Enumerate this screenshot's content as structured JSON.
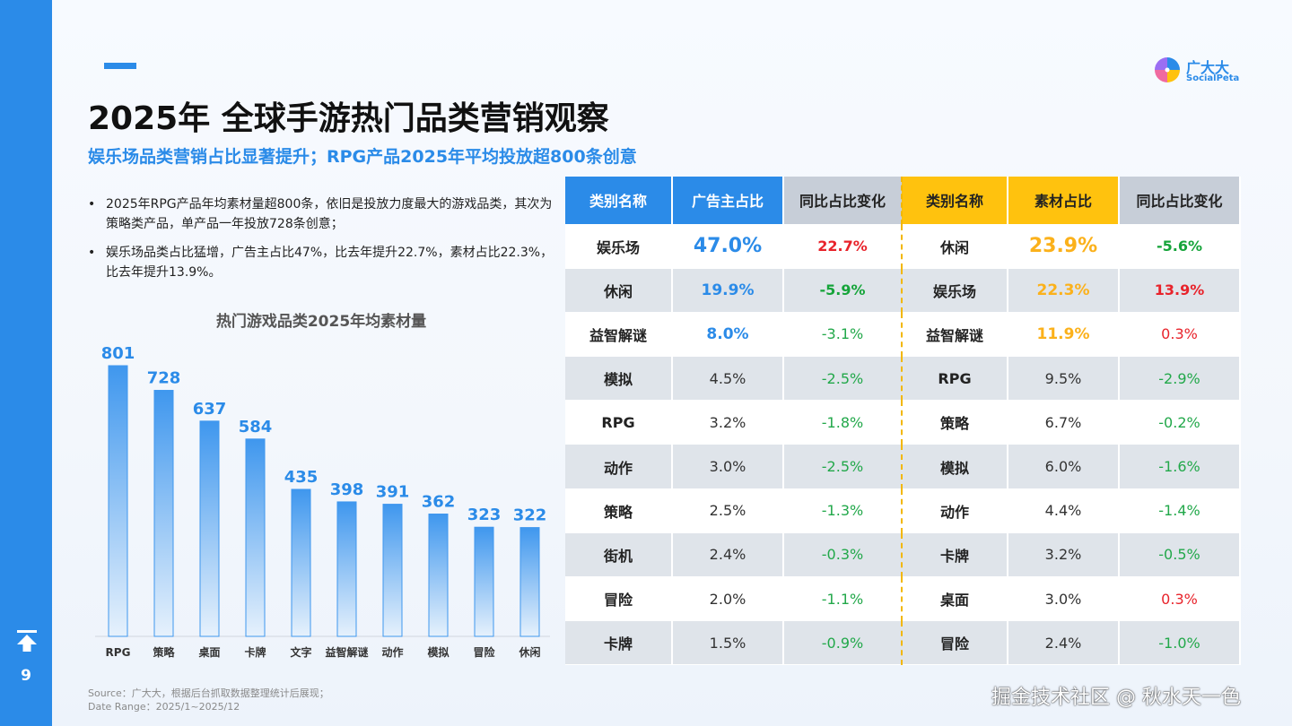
{
  "page": {
    "title": "2025年 全球手游热门品类营销观察",
    "subtitle": "娱乐场品类营销占比显著提升；RPG产品2025年平均投放超800条创意",
    "page_number": "9",
    "logo": {
      "cn": "广大大",
      "en": "SocialPeta"
    },
    "bullets": [
      "2025年RPG产品年均素材量超800条，依旧是投放力度最大的游戏品类，其次为策略类产品，单产品一年投放728条创意；",
      "娱乐场品类占比猛增，广告主占比47%，比去年提升22.7%，素材占比22.3%，比去年提升13.9%。"
    ],
    "bullet_marker": "•",
    "source_lines": [
      "Source：广大大，根据后台抓取数据整理统计后展现；",
      "Date Range：2025/1~2025/12"
    ],
    "watermark": "掘金技术社区 @ 秋水天一色",
    "colors": {
      "accent": "#2b8be8",
      "yellow": "#ffc20e",
      "red": "#e8232b",
      "green": "#16a43a"
    },
    "icons": {
      "home": "to-top-icon",
      "logo": "pie-logo-icon"
    }
  },
  "chart_data": {
    "type": "bar",
    "title": "热门游戏品类2025年均素材量",
    "categories": [
      "RPG",
      "策略",
      "桌面",
      "卡牌",
      "文字",
      "益智解谜",
      "动作",
      "模拟",
      "冒险",
      "休闲"
    ],
    "values": [
      801,
      728,
      637,
      584,
      435,
      398,
      391,
      362,
      323,
      322
    ],
    "ylim": [
      0,
      801
    ]
  },
  "table": {
    "left_headers": [
      "类别名称",
      "广告主占比",
      "同比占比变化"
    ],
    "right_headers": [
      "类别名称",
      "素材占比",
      "同比占比变化"
    ],
    "rows": [
      {
        "name1": "娱乐场",
        "adv": "47.0%",
        "adv_change": "22.7%",
        "name2": "休闲",
        "mat": "23.9%",
        "mat_change": "-5.6%"
      },
      {
        "name1": "休闲",
        "adv": "19.9%",
        "adv_change": "-5.9%",
        "name2": "娱乐场",
        "mat": "22.3%",
        "mat_change": "13.9%"
      },
      {
        "name1": "益智解谜",
        "adv": "8.0%",
        "adv_change": "-3.1%",
        "name2": "益智解谜",
        "mat": "11.9%",
        "mat_change": "0.3%"
      },
      {
        "name1": "模拟",
        "adv": "4.5%",
        "adv_change": "-2.5%",
        "name2": "RPG",
        "mat": "9.5%",
        "mat_change": "-2.9%"
      },
      {
        "name1": "RPG",
        "adv": "3.2%",
        "adv_change": "-1.8%",
        "name2": "策略",
        "mat": "6.7%",
        "mat_change": "-0.2%"
      },
      {
        "name1": "动作",
        "adv": "3.0%",
        "adv_change": "-2.5%",
        "name2": "模拟",
        "mat": "6.0%",
        "mat_change": "-1.6%"
      },
      {
        "name1": "策略",
        "adv": "2.5%",
        "adv_change": "-1.3%",
        "name2": "动作",
        "mat": "4.4%",
        "mat_change": "-1.4%"
      },
      {
        "name1": "街机",
        "adv": "2.4%",
        "adv_change": "-0.3%",
        "name2": "卡牌",
        "mat": "3.2%",
        "mat_change": "-0.5%"
      },
      {
        "name1": "冒险",
        "adv": "2.0%",
        "adv_change": "-1.1%",
        "name2": "桌面",
        "mat": "3.0%",
        "mat_change": "0.3%"
      },
      {
        "name1": "卡牌",
        "adv": "1.5%",
        "adv_change": "-0.9%",
        "name2": "冒险",
        "mat": "2.4%",
        "mat_change": "-1.0%"
      }
    ]
  }
}
